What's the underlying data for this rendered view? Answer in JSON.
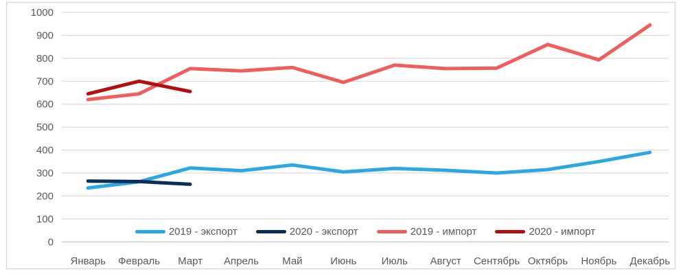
{
  "chart_data": {
    "type": "line",
    "title": "",
    "xlabel": "",
    "ylabel": "",
    "categories": [
      "Январь",
      "Февраль",
      "Март",
      "Апрель",
      "Май",
      "Июнь",
      "Июль",
      "Август",
      "Сентябрь",
      "Октябрь",
      "Ноябрь",
      "Декабрь"
    ],
    "series": [
      {
        "name": "2019 - экспорт",
        "color": "#29A9E0",
        "values": [
          235,
          262,
          322,
          310,
          335,
          305,
          320,
          312,
          300,
          315,
          350,
          390
        ]
      },
      {
        "name": "2020 - экспорт",
        "color": "#0B2D5C",
        "values": [
          265,
          263,
          251
        ]
      },
      {
        "name": "2019 - импорт",
        "color": "#F15D5D",
        "values": [
          620,
          645,
          755,
          745,
          760,
          695,
          770,
          755,
          757,
          860,
          793,
          945
        ]
      },
      {
        "name": "2020 - импорт",
        "color": "#B40E0E",
        "values": [
          645,
          700,
          655
        ]
      }
    ],
    "ylim": [
      0,
      1000
    ],
    "ytick_step": 100,
    "yticks": [
      0,
      100,
      200,
      300,
      400,
      500,
      600,
      700,
      800,
      900,
      1000
    ],
    "grid": true,
    "legend_position": "bottom-inside"
  },
  "styles": {
    "gridline_color": "#D9D9D9",
    "axis_line_color": "#BFBFBF",
    "border_color": "#D9D9D9",
    "tick_label_color": "#595959",
    "background": "#FFFFFF",
    "line_width": 5
  }
}
